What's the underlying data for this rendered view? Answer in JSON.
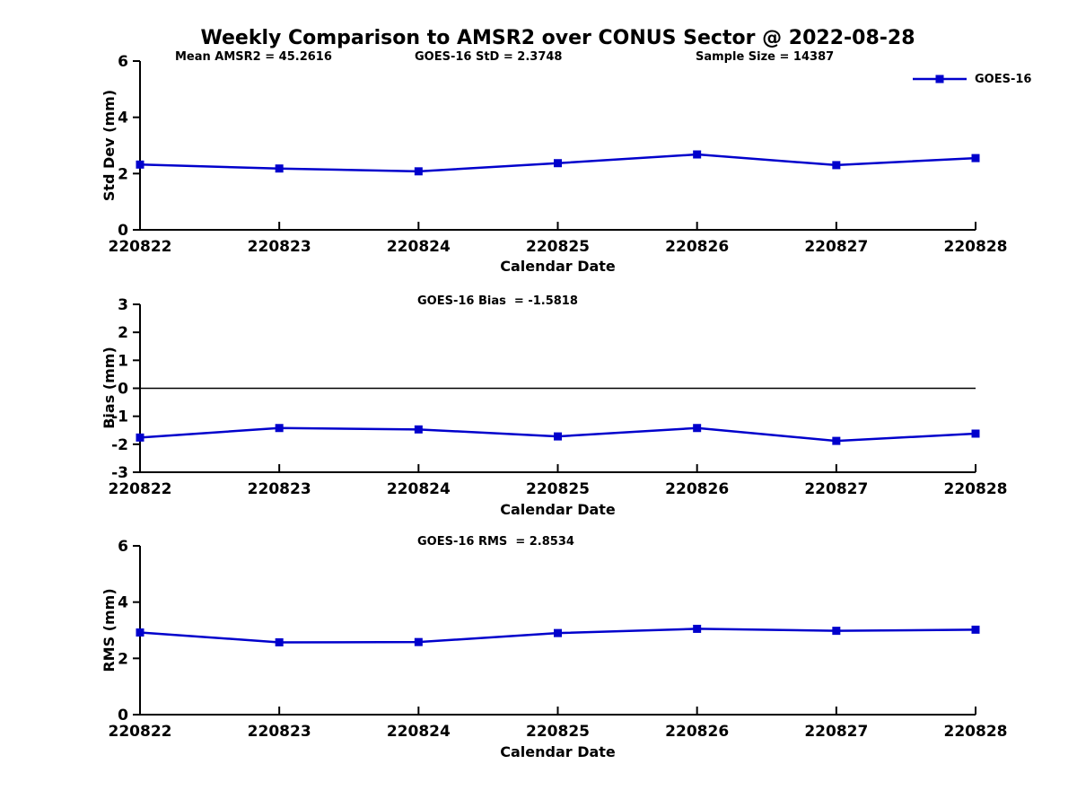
{
  "figure": {
    "title": "Weekly Comparison to AMSR2 over CONUS Sector @ 2022-08-28"
  },
  "legend": {
    "label": "GOES-16"
  },
  "colors": {
    "line": "#0000cc",
    "axis": "#000000",
    "zero_line": "#000000",
    "text": "#000000"
  },
  "chart_data": [
    {
      "type": "line",
      "id": "std-dev",
      "ylabel": "Std Dev (mm)",
      "xlabel": "Calendar Date",
      "annotations": [
        "Mean AMSR2 = 45.2616",
        "GOES-16 StD = 2.3748",
        "Sample Size = 14387"
      ],
      "categories": [
        "220822",
        "220823",
        "220824",
        "220825",
        "220826",
        "220827",
        "220828"
      ],
      "series": [
        {
          "name": "GOES-16",
          "values": [
            2.32,
            2.18,
            2.08,
            2.37,
            2.68,
            2.3,
            2.55
          ]
        }
      ],
      "ylim": [
        0,
        6
      ],
      "yticks": [
        0,
        2,
        4,
        6
      ],
      "zero_line": false,
      "legend_position": "top-right-outside",
      "grid": false
    },
    {
      "type": "line",
      "id": "bias",
      "ylabel": "Bias (mm)",
      "xlabel": "Calendar Date",
      "annotations": [
        "GOES-16 Bias  = -1.5818"
      ],
      "categories": [
        "220822",
        "220823",
        "220824",
        "220825",
        "220826",
        "220827",
        "220828"
      ],
      "series": [
        {
          "name": "GOES-16",
          "values": [
            -1.76,
            -1.42,
            -1.47,
            -1.72,
            -1.42,
            -1.88,
            -1.62
          ]
        }
      ],
      "ylim": [
        -3,
        3
      ],
      "yticks": [
        -3,
        -2,
        -1,
        0,
        1,
        2,
        3
      ],
      "zero_line": true,
      "grid": false
    },
    {
      "type": "line",
      "id": "rms",
      "ylabel": "RMS (mm)",
      "xlabel": "Calendar Date",
      "annotations": [
        "GOES-16 RMS  = 2.8534"
      ],
      "categories": [
        "220822",
        "220823",
        "220824",
        "220825",
        "220826",
        "220827",
        "220828"
      ],
      "series": [
        {
          "name": "GOES-16",
          "values": [
            2.92,
            2.57,
            2.58,
            2.9,
            3.05,
            2.98,
            3.02
          ]
        }
      ],
      "ylim": [
        0,
        6
      ],
      "yticks": [
        0,
        2,
        4,
        6
      ],
      "zero_line": false,
      "grid": false
    }
  ]
}
